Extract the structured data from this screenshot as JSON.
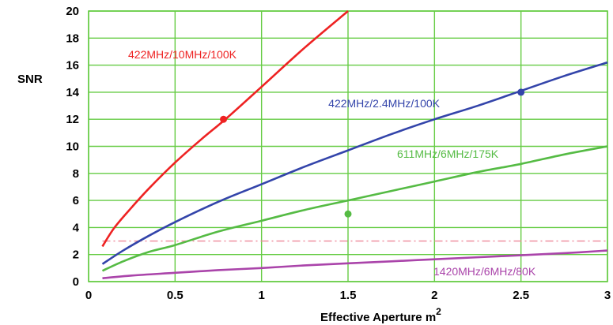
{
  "chart_data": {
    "type": "line",
    "xlabel": "Effective Aperture m",
    "xlabel_superscript": "2",
    "ylabel": "SNR",
    "xlim": [
      0,
      3
    ],
    "ylim": [
      0,
      20
    ],
    "x_ticks": [
      0,
      0.5,
      1,
      1.5,
      2,
      2.5,
      3
    ],
    "x_tick_labels": [
      "0",
      "0.5",
      "1",
      "1.5",
      "2",
      "2.5",
      "3"
    ],
    "y_ticks": [
      0,
      2,
      4,
      6,
      8,
      10,
      12,
      14,
      16,
      18,
      20
    ],
    "y_tick_labels": [
      "0",
      "2",
      "4",
      "6",
      "8",
      "10",
      "12",
      "14",
      "16",
      "18",
      "20"
    ],
    "grid": true,
    "grid_color": "#66cc44",
    "series": [
      {
        "name": "422MHz/10MHz/100K",
        "color": "#ee2222",
        "x": [
          0.08,
          0.15,
          0.25,
          0.35,
          0.5,
          0.65,
          0.8,
          1.0,
          1.25,
          1.5
        ],
        "y": [
          2.6,
          4.0,
          5.5,
          6.9,
          8.8,
          10.5,
          12.1,
          14.4,
          17.3,
          20.0
        ],
        "marker": {
          "x": 0.78,
          "y": 12.0
        }
      },
      {
        "name": "422MHz/2.4MHz/100K",
        "color": "#3344aa",
        "x": [
          0.08,
          0.2,
          0.35,
          0.5,
          0.75,
          1.0,
          1.25,
          1.5,
          1.75,
          2.0,
          2.25,
          2.5,
          2.75,
          3.0
        ],
        "y": [
          1.3,
          2.3,
          3.4,
          4.4,
          5.9,
          7.2,
          8.5,
          9.7,
          10.9,
          12.0,
          13.0,
          14.1,
          15.2,
          16.2
        ],
        "marker": {
          "x": 2.5,
          "y": 14.0
        }
      },
      {
        "name": "611MHz/6MHz/175K",
        "color": "#55bb44",
        "x": [
          0.08,
          0.2,
          0.35,
          0.5,
          0.75,
          1.0,
          1.25,
          1.5,
          1.75,
          2.0,
          2.25,
          2.5,
          2.75,
          3.0
        ],
        "y": [
          0.8,
          1.5,
          2.2,
          2.7,
          3.7,
          4.5,
          5.3,
          6.0,
          6.7,
          7.4,
          8.1,
          8.7,
          9.4,
          10.0
        ],
        "marker": {
          "x": 1.5,
          "y": 5.0
        }
      },
      {
        "name": "1420MHz/6MHz/80K",
        "color": "#aa44aa",
        "x": [
          0.08,
          0.25,
          0.5,
          0.75,
          1.0,
          1.25,
          1.5,
          1.75,
          2.0,
          2.25,
          2.5,
          2.75,
          3.0
        ],
        "y": [
          0.25,
          0.45,
          0.65,
          0.85,
          1.0,
          1.2,
          1.35,
          1.5,
          1.65,
          1.8,
          1.95,
          2.1,
          2.3
        ]
      }
    ],
    "threshold": {
      "y": 3,
      "x_start": 0.08,
      "color": "#ee8899",
      "style": "dashed"
    }
  }
}
